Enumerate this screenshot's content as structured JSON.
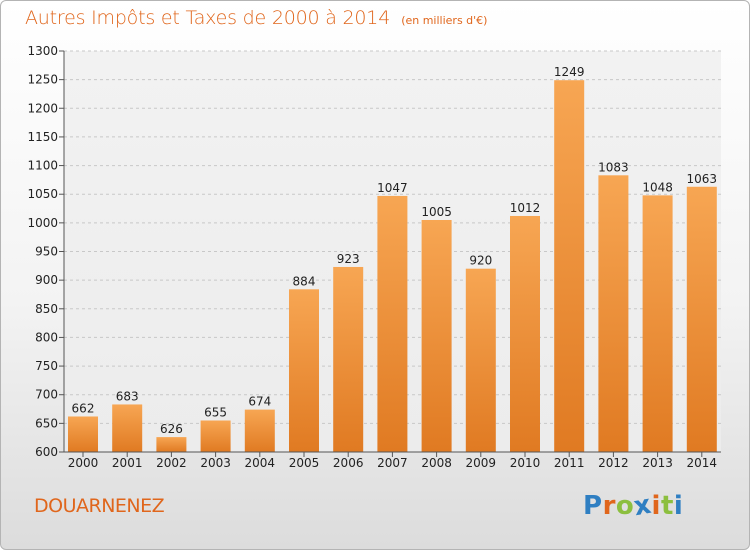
{
  "header": {
    "title": "Autres Impôts et Taxes de 2000 à 2014",
    "unit": "(en milliers d'€)"
  },
  "footer": {
    "city": "DOUARNENEZ",
    "logo_letters": [
      "P",
      "r",
      "o",
      "x",
      "i",
      "t",
      "i"
    ],
    "logo_colors": [
      "#2f7fc2",
      "#e0661c",
      "#8cbf3f",
      "#2f7fc2",
      "#e0661c",
      "#8cbf3f",
      "#2f7fc2"
    ]
  },
  "colors": {
    "accent": "#e0661c",
    "bar_top": "#f7a653",
    "bar_bottom": "#e07a22",
    "grid": "#c8c8c8"
  },
  "chart_data": {
    "type": "bar",
    "title": "Autres Impôts et Taxes de 2000 à 2014",
    "subtitle": "(en milliers d'€)",
    "categories": [
      "2000",
      "2001",
      "2002",
      "2003",
      "2004",
      "2005",
      "2006",
      "2007",
      "2008",
      "2009",
      "2010",
      "2011",
      "2012",
      "2013",
      "2014"
    ],
    "values": [
      662,
      683,
      626,
      655,
      674,
      884,
      923,
      1047,
      1005,
      920,
      1012,
      1249,
      1083,
      1048,
      1063
    ],
    "ylim": [
      600,
      1300
    ],
    "yticks": [
      600,
      650,
      700,
      750,
      800,
      850,
      900,
      950,
      1000,
      1050,
      1100,
      1150,
      1200,
      1250,
      1300
    ],
    "grid": true,
    "xlabel": "",
    "ylabel": ""
  }
}
